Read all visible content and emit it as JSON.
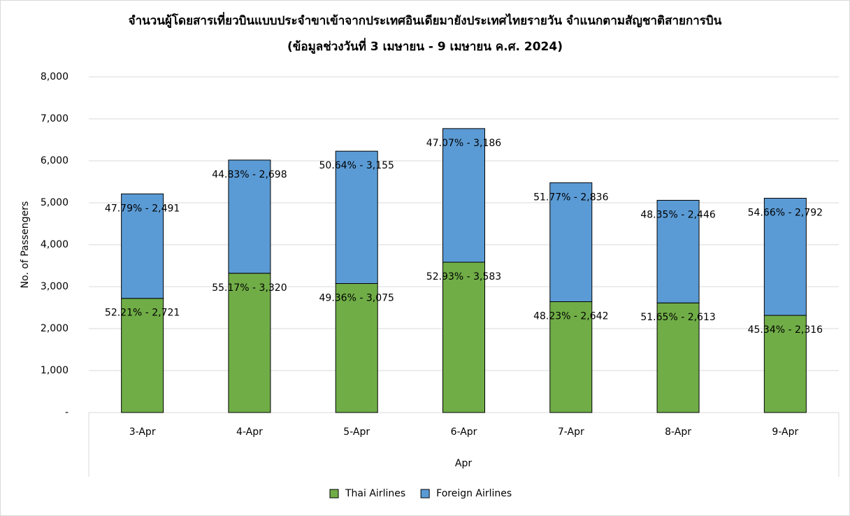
{
  "chart_data": {
    "type": "stacked_bar",
    "title": "จำนวนผู้โดยสารเที่ยวบินแบบประจำขาเข้าจากประเทศอินเดียมายังประเทศไทยรายวัน  จำแนกตามสัญชาติสายการบิน",
    "subtitle": "(ข้อมูลช่วงวันที่ 3 เมษายน - 9 เมษายน ค.ศ. 2024)",
    "x_label": "Apr",
    "y_label": "No. of Passengers",
    "categories": [
      "3-Apr",
      "4-Apr",
      "5-Apr",
      "6-Apr",
      "7-Apr",
      "8-Apr",
      "9-Apr"
    ],
    "series": [
      {
        "name": "Thai Airlines",
        "color": "#70ad47",
        "values": [
          2721,
          3320,
          3075,
          3583,
          2642,
          2613,
          2316
        ],
        "value_labels": [
          "52.21% - 2,721",
          "55.17% - 3,320",
          "49.36% - 3,075",
          "52.93% - 3,583",
          "48.23% - 2,642",
          "51.65% - 2,613",
          "45.34% - 2,316"
        ]
      },
      {
        "name": "Foreign Airlines",
        "color": "#5b9bd5",
        "values": [
          2491,
          2698,
          3155,
          3186,
          2836,
          2446,
          2792
        ],
        "value_labels": [
          "47.79% - 2,491",
          "44.83% - 2,698",
          "50.64% - 3,155",
          "47.07% - 3,186",
          "51.77% - 2,836",
          "48.35% - 2,446",
          "54.66% - 2,792"
        ]
      }
    ],
    "ylim": [
      0,
      8000
    ],
    "yticks": [
      {
        "value": 0,
        "label": "-"
      },
      {
        "value": 1000,
        "label": "1,000"
      },
      {
        "value": 2000,
        "label": "2,000"
      },
      {
        "value": 3000,
        "label": "3,000"
      },
      {
        "value": 4000,
        "label": "4,000"
      },
      {
        "value": 5000,
        "label": "5,000"
      },
      {
        "value": 6000,
        "label": "6,000"
      },
      {
        "value": 7000,
        "label": "7,000"
      },
      {
        "value": 8000,
        "label": "8,000"
      }
    ],
    "grid": true,
    "legend": "bottom"
  }
}
